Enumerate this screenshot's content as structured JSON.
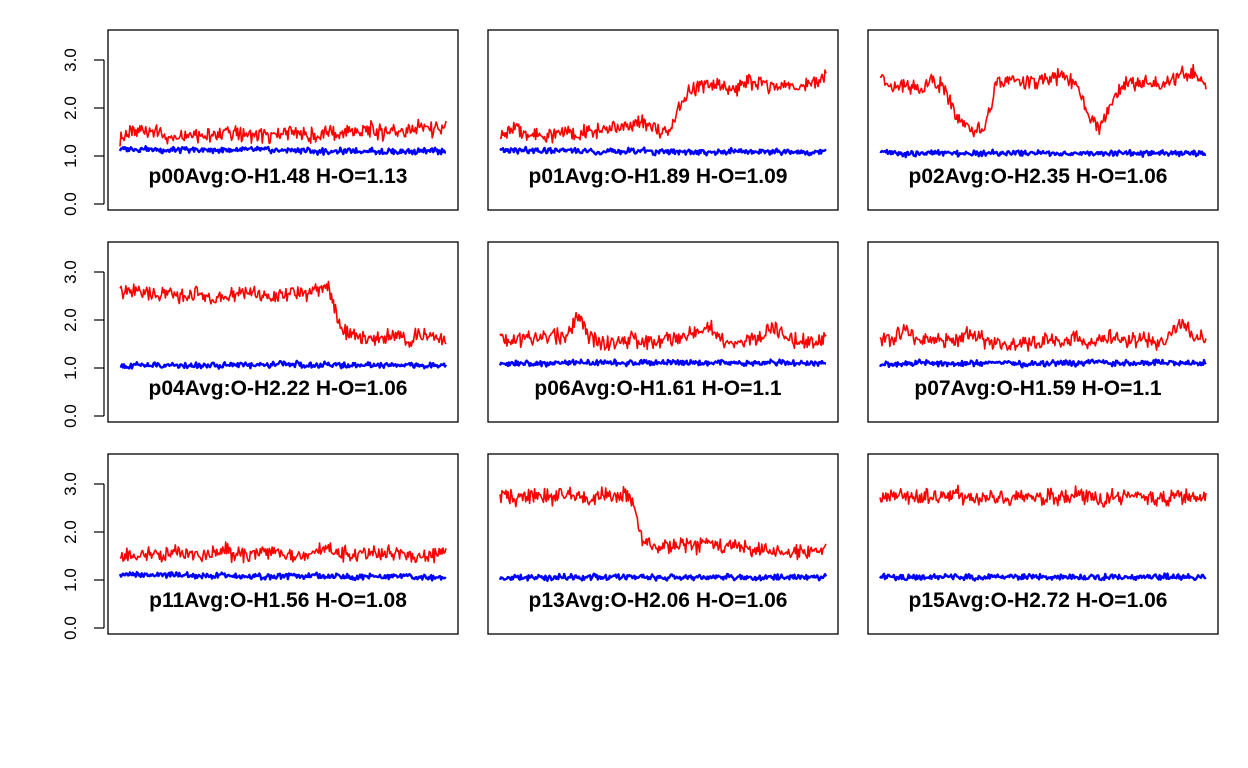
{
  "colors": {
    "oh": "#ff0000",
    "ho": "#0000ff",
    "frame": "#000000",
    "background": "#ffffff"
  },
  "axis": {
    "ylim": [
      0.0,
      3.5
    ],
    "yticks": [
      "0.0",
      "1.0",
      "2.0",
      "3.0"
    ],
    "ytick_values": [
      0.0,
      1.0,
      2.0,
      3.0
    ]
  },
  "chart_data": [
    {
      "type": "line",
      "label": "p00Avg:O-H1.48 H-O=1.13",
      "series": [
        {
          "color": "#ff0000",
          "values": [
            1.4,
            1.45,
            1.55,
            1.45,
            1.4,
            1.5,
            1.45,
            1.4,
            1.5,
            1.45,
            1.45,
            1.4,
            1.45,
            1.5,
            1.45,
            1.4,
            1.5,
            1.45,
            1.5,
            1.55,
            1.5,
            1.55,
            1.5,
            1.6,
            1.55,
            1.6
          ]
        },
        {
          "color": "#0000ff",
          "values": [
            1.15,
            1.15,
            1.15,
            1.13,
            1.13,
            1.13,
            1.13,
            1.12,
            1.12,
            1.13,
            1.13,
            1.12,
            1.12,
            1.12,
            1.12,
            1.1,
            1.1,
            1.1,
            1.1,
            1.1,
            1.1,
            1.1,
            1.1,
            1.1,
            1.1,
            1.1
          ]
        }
      ]
    },
    {
      "type": "line",
      "label": "p01Avg:O-H1.89 H-O=1.09",
      "series": [
        {
          "color": "#ff0000",
          "values": [
            1.45,
            1.55,
            1.45,
            1.45,
            1.45,
            1.5,
            1.45,
            1.5,
            1.55,
            1.55,
            1.65,
            1.7,
            1.55,
            1.5,
            2.2,
            2.45,
            2.5,
            2.45,
            2.4,
            2.55,
            2.5,
            2.45,
            2.5,
            2.4,
            2.55,
            2.6
          ]
        },
        {
          "color": "#0000ff",
          "values": [
            1.12,
            1.1,
            1.12,
            1.1,
            1.1,
            1.12,
            1.1,
            1.1,
            1.1,
            1.1,
            1.1,
            1.12,
            1.08,
            1.1,
            1.08,
            1.08,
            1.08,
            1.08,
            1.1,
            1.08,
            1.1,
            1.08,
            1.08,
            1.08,
            1.08,
            1.08
          ]
        }
      ]
    },
    {
      "type": "line",
      "label": "p02Avg:O-H2.35 H-O=1.06",
      "series": [
        {
          "color": "#ff0000",
          "values": [
            2.6,
            2.45,
            2.5,
            2.4,
            2.6,
            2.4,
            1.75,
            1.6,
            1.55,
            2.55,
            2.6,
            2.55,
            2.5,
            2.6,
            2.7,
            2.5,
            1.8,
            1.6,
            2.3,
            2.5,
            2.55,
            2.5,
            2.5,
            2.7,
            2.8,
            2.4
          ]
        },
        {
          "color": "#0000ff",
          "values": [
            1.08,
            1.06,
            1.05,
            1.06,
            1.06,
            1.06,
            1.05,
            1.06,
            1.06,
            1.06,
            1.05,
            1.06,
            1.06,
            1.06,
            1.06,
            1.05,
            1.06,
            1.06,
            1.06,
            1.06,
            1.05,
            1.06,
            1.06,
            1.06,
            1.06,
            1.06
          ]
        }
      ]
    },
    {
      "type": "line",
      "label": "p04Avg:O-H2.22 H-O=1.06",
      "series": [
        {
          "color": "#ff0000",
          "values": [
            2.6,
            2.65,
            2.55,
            2.5,
            2.55,
            2.5,
            2.6,
            2.45,
            2.5,
            2.55,
            2.6,
            2.5,
            2.45,
            2.55,
            2.55,
            2.6,
            2.7,
            1.8,
            1.65,
            1.65,
            1.6,
            1.65,
            1.6,
            1.65,
            1.65,
            1.6
          ]
        },
        {
          "color": "#0000ff",
          "values": [
            1.05,
            1.05,
            1.06,
            1.05,
            1.06,
            1.06,
            1.05,
            1.06,
            1.06,
            1.06,
            1.06,
            1.07,
            1.07,
            1.08,
            1.08,
            1.07,
            1.07,
            1.06,
            1.06,
            1.06,
            1.06,
            1.06,
            1.06,
            1.06,
            1.06,
            1.06
          ]
        }
      ]
    },
    {
      "type": "line",
      "label": "p06Avg:O-H1.61 H-O=1.1",
      "series": [
        {
          "color": "#ff0000",
          "values": [
            1.6,
            1.55,
            1.65,
            1.6,
            1.7,
            1.6,
            2.1,
            1.6,
            1.55,
            1.5,
            1.6,
            1.55,
            1.55,
            1.6,
            1.65,
            1.7,
            1.9,
            1.6,
            1.55,
            1.6,
            1.65,
            1.9,
            1.6,
            1.55,
            1.55,
            1.6
          ]
        },
        {
          "color": "#0000ff",
          "values": [
            1.08,
            1.08,
            1.1,
            1.08,
            1.1,
            1.12,
            1.12,
            1.1,
            1.12,
            1.1,
            1.1,
            1.12,
            1.1,
            1.12,
            1.1,
            1.12,
            1.1,
            1.12,
            1.1,
            1.1,
            1.1,
            1.12,
            1.1,
            1.1,
            1.1,
            1.1
          ]
        }
      ]
    },
    {
      "type": "line",
      "label": "p07Avg:O-H1.59 H-O=1.1",
      "series": [
        {
          "color": "#ff0000",
          "values": [
            1.55,
            1.6,
            1.8,
            1.55,
            1.6,
            1.55,
            1.6,
            1.75,
            1.55,
            1.5,
            1.45,
            1.5,
            1.55,
            1.6,
            1.5,
            1.65,
            1.55,
            1.6,
            1.7,
            1.55,
            1.6,
            1.55,
            1.6,
            1.9,
            1.7,
            1.6
          ]
        },
        {
          "color": "#0000ff",
          "values": [
            1.08,
            1.08,
            1.1,
            1.1,
            1.1,
            1.08,
            1.1,
            1.1,
            1.1,
            1.12,
            1.1,
            1.08,
            1.1,
            1.1,
            1.12,
            1.1,
            1.12,
            1.12,
            1.1,
            1.1,
            1.1,
            1.12,
            1.1,
            1.1,
            1.12,
            1.1
          ]
        }
      ]
    },
    {
      "type": "line",
      "label": "p11Avg:O-H1.56 H-O=1.08",
      "series": [
        {
          "color": "#ff0000",
          "values": [
            1.45,
            1.5,
            1.55,
            1.5,
            1.6,
            1.55,
            1.5,
            1.55,
            1.65,
            1.5,
            1.55,
            1.55,
            1.6,
            1.5,
            1.55,
            1.6,
            1.65,
            1.55,
            1.5,
            1.55,
            1.55,
            1.6,
            1.55,
            1.5,
            1.5,
            1.65
          ]
        },
        {
          "color": "#0000ff",
          "values": [
            1.12,
            1.12,
            1.1,
            1.1,
            1.12,
            1.1,
            1.08,
            1.08,
            1.1,
            1.08,
            1.08,
            1.08,
            1.08,
            1.08,
            1.08,
            1.08,
            1.08,
            1.08,
            1.06,
            1.08,
            1.06,
            1.08,
            1.06,
            1.06,
            1.06,
            1.06
          ]
        }
      ]
    },
    {
      "type": "line",
      "label": "p13Avg:O-H2.06 H-O=1.06",
      "series": [
        {
          "color": "#ff0000",
          "values": [
            2.8,
            2.7,
            2.75,
            2.8,
            2.7,
            2.85,
            2.75,
            2.7,
            2.8,
            2.75,
            2.75,
            1.75,
            1.65,
            1.7,
            1.75,
            1.7,
            1.8,
            1.7,
            1.75,
            1.65,
            1.6,
            1.6,
            1.55,
            1.6,
            1.55,
            1.65
          ]
        },
        {
          "color": "#0000ff",
          "values": [
            1.06,
            1.05,
            1.06,
            1.06,
            1.05,
            1.06,
            1.06,
            1.06,
            1.05,
            1.06,
            1.06,
            1.06,
            1.06,
            1.06,
            1.05,
            1.06,
            1.06,
            1.06,
            1.06,
            1.06,
            1.05,
            1.06,
            1.06,
            1.06,
            1.06,
            1.06
          ]
        }
      ]
    },
    {
      "type": "line",
      "label": "p15Avg:O-H2.72 H-O=1.06",
      "series": [
        {
          "color": "#ff0000",
          "values": [
            2.75,
            2.7,
            2.75,
            2.7,
            2.75,
            2.7,
            2.8,
            2.7,
            2.7,
            2.75,
            2.7,
            2.75,
            2.7,
            2.75,
            2.7,
            2.8,
            2.7,
            2.7,
            2.75,
            2.7,
            2.75,
            2.7,
            2.7,
            2.75,
            2.7,
            2.75
          ]
        },
        {
          "color": "#0000ff",
          "values": [
            1.08,
            1.07,
            1.06,
            1.06,
            1.06,
            1.06,
            1.06,
            1.05,
            1.06,
            1.06,
            1.06,
            1.06,
            1.06,
            1.05,
            1.06,
            1.06,
            1.06,
            1.06,
            1.06,
            1.05,
            1.06,
            1.06,
            1.06,
            1.06,
            1.06,
            1.06
          ]
        }
      ]
    }
  ]
}
